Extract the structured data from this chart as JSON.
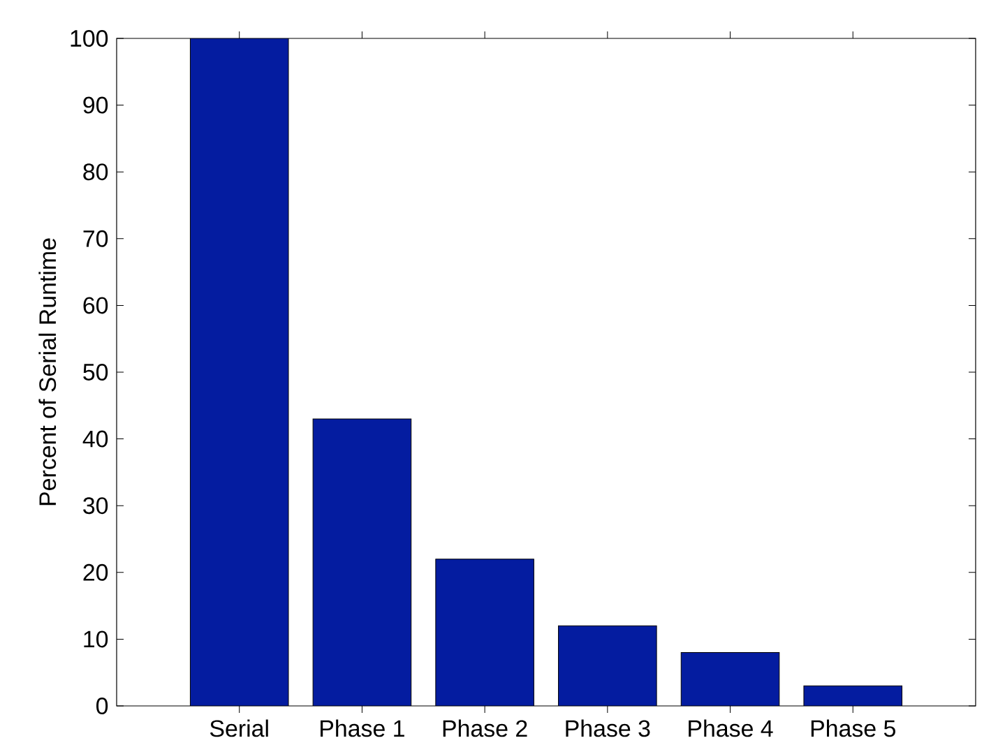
{
  "chart_data": {
    "type": "bar",
    "ylabel": "Percent of Serial Runtime",
    "categories": [
      "Serial",
      "Phase 1",
      "Phase 2",
      "Phase 3",
      "Phase 4",
      "Phase 5"
    ],
    "values": [
      100,
      43,
      22,
      12,
      8,
      3
    ],
    "color": "#041ca0",
    "ylim": [
      0,
      100
    ],
    "yticks": [
      0,
      10,
      20,
      30,
      40,
      50,
      60,
      70,
      80,
      90,
      100
    ]
  }
}
